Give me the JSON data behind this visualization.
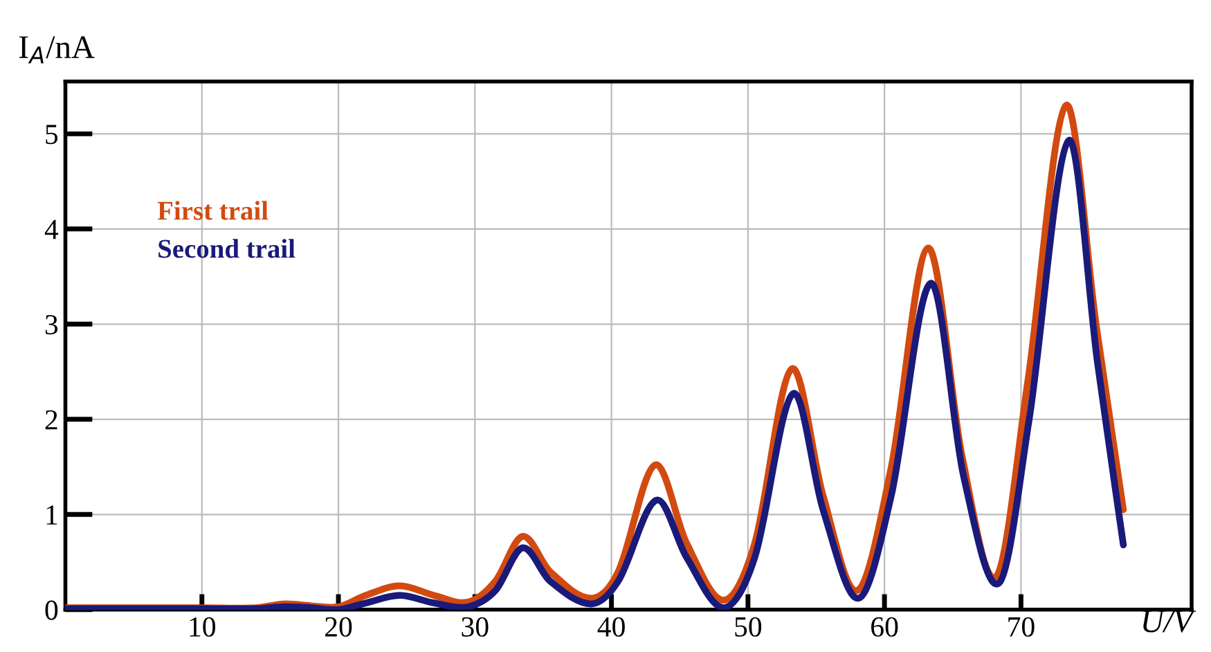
{
  "chart_data": {
    "type": "line",
    "xlabel": "U/V",
    "ylabel": "I$_{A}$/nA",
    "xlim": [
      0,
      82.5
    ],
    "ylim": [
      0,
      5.55
    ],
    "xticks": [
      10,
      20,
      30,
      40,
      50,
      60,
      70
    ],
    "yticks": [
      0,
      1,
      2,
      3,
      4,
      5
    ],
    "grid": true,
    "legend": "top left",
    "marker": "none",
    "line_style": "solid",
    "series": [
      {
        "name": "First trail",
        "color": "#d24a10",
        "x": [
          0,
          10,
          14,
          16,
          18,
          20,
          22,
          24.5,
          27,
          29.5,
          31.5,
          33.5,
          35.5,
          38.5,
          40.5,
          43.2,
          45.5,
          48.2,
          50.5,
          53.2,
          55.5,
          58,
          60.5,
          63.2,
          65.7,
          68.2,
          70.5,
          73.3,
          75.5,
          77.5
        ],
        "values": [
          0.02,
          0.02,
          0.02,
          0.06,
          0.04,
          0.03,
          0.15,
          0.25,
          0.15,
          0.08,
          0.3,
          0.77,
          0.4,
          0.12,
          0.4,
          1.52,
          0.7,
          0.1,
          0.7,
          2.53,
          1.2,
          0.2,
          1.5,
          3.8,
          1.6,
          0.35,
          2.4,
          5.3,
          3.0,
          1.05
        ]
      },
      {
        "name": "Second trail",
        "color": "#1a1a7a",
        "x": [
          0,
          10,
          14,
          16,
          18,
          20,
          22,
          24.5,
          27,
          29.5,
          31.5,
          33.5,
          35.5,
          38.5,
          40.5,
          43.3,
          45.5,
          48.2,
          50.5,
          53.3,
          55.5,
          58.1,
          60.5,
          63.4,
          65.8,
          68.4,
          70.6,
          73.5,
          75.6,
          77.5
        ],
        "values": [
          0.01,
          0.01,
          0.01,
          0.03,
          0.02,
          0.0,
          0.07,
          0.15,
          0.07,
          0.03,
          0.2,
          0.65,
          0.3,
          0.06,
          0.3,
          1.15,
          0.55,
          0.02,
          0.55,
          2.27,
          1.05,
          0.12,
          1.2,
          3.43,
          1.4,
          0.28,
          2.0,
          4.93,
          2.6,
          0.68
        ]
      }
    ]
  }
}
